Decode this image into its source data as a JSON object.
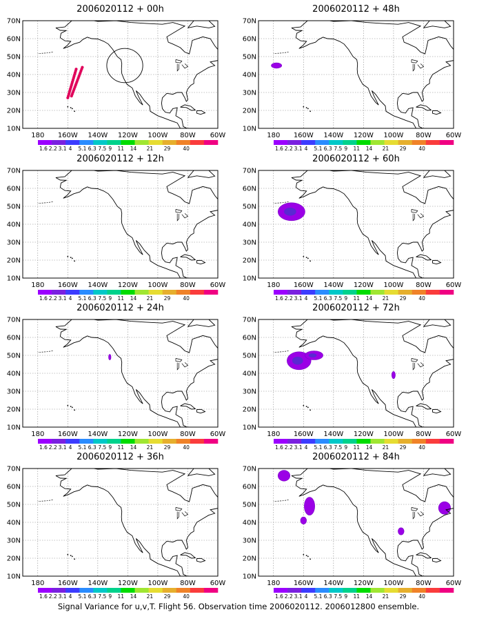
{
  "caption": "Signal Variance for u,v,T. Flight 56. Observation time 2006020112. 2006012800 ensemble.",
  "colorbar": {
    "labels": [
      "1.6",
      "2.2",
      "3.1",
      "4",
      "5.1",
      "6.3",
      "7.5",
      "9",
      "11",
      "14",
      "21",
      "29",
      "40"
    ],
    "colors": [
      "#9b00ff",
      "#7a20e0",
      "#3c3cff",
      "#2a8cff",
      "#00c8c8",
      "#00d28c",
      "#00dc00",
      "#a0e632",
      "#e6dc32",
      "#e6af2d",
      "#f08228",
      "#fa3c3c",
      "#f00082"
    ]
  },
  "axes": {
    "lat_labels": [
      "70N",
      "60N",
      "50N",
      "40N",
      "30N",
      "20N",
      "10N"
    ],
    "lon_labels": [
      "180",
      "160W",
      "140W",
      "120W",
      "100W",
      "80W",
      "60W"
    ]
  },
  "panels": [
    {
      "title": "2006020112 + 00h",
      "features": {
        "track": true,
        "circle": true,
        "blobs": []
      }
    },
    {
      "title": "2006020112 + 48h",
      "features": {
        "blobs": [
          {
            "lon": -178,
            "lat": 45,
            "rx": 3.5,
            "ry": 1.5
          }
        ]
      }
    },
    {
      "title": "2006020112 + 12h",
      "features": {
        "blobs": []
      }
    },
    {
      "title": "2006020112 + 60h",
      "features": {
        "blobs": [
          {
            "lon": -168,
            "lat": 47,
            "rx": 9,
            "ry": 5
          }
        ]
      }
    },
    {
      "title": "2006020112 + 24h",
      "features": {
        "blobs": [
          {
            "lon": -132,
            "lat": 49,
            "rx": 0.8,
            "ry": 1.6
          }
        ]
      }
    },
    {
      "title": "2006020112 + 72h",
      "features": {
        "blobs": [
          {
            "lon": -163,
            "lat": 47,
            "rx": 8,
            "ry": 5
          },
          {
            "lon": -153,
            "lat": 50,
            "rx": 6,
            "ry": 2.5
          },
          {
            "lon": -100,
            "lat": 39,
            "rx": 1.2,
            "ry": 2
          }
        ]
      }
    },
    {
      "title": "2006020112 + 36h",
      "features": {
        "blobs": []
      }
    },
    {
      "title": "2006020112 + 84h",
      "features": {
        "blobs": [
          {
            "lon": -173,
            "lat": 66,
            "rx": 4,
            "ry": 3
          },
          {
            "lon": -156,
            "lat": 49,
            "rx": 3.5,
            "ry": 5
          },
          {
            "lon": -160,
            "lat": 41,
            "rx": 2,
            "ry": 2
          },
          {
            "lon": -95,
            "lat": 35,
            "rx": 2,
            "ry": 2
          },
          {
            "lon": -66,
            "lat": 48,
            "rx": 4,
            "ry": 3.5
          }
        ]
      }
    }
  ]
}
